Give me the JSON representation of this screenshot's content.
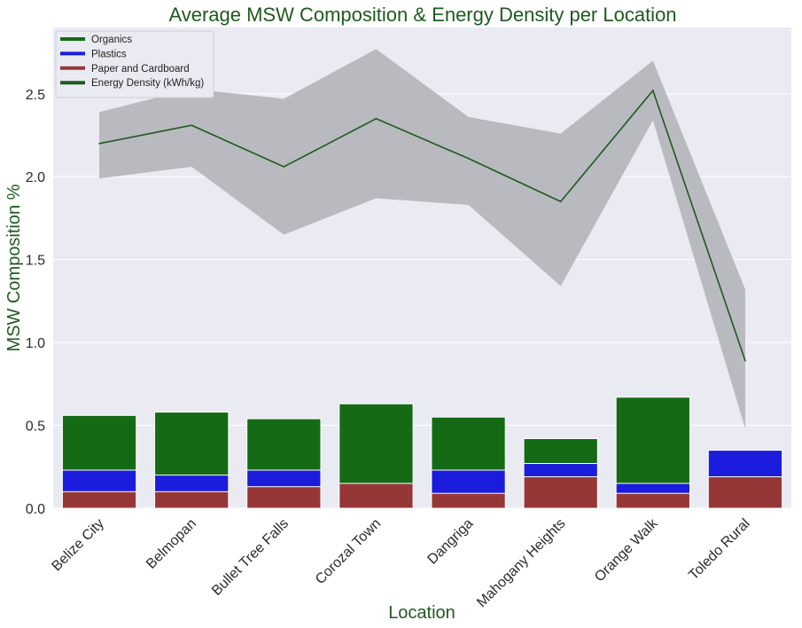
{
  "chart_data": {
    "type": "bar",
    "title": "Average MSW Composition & Energy Density per Location",
    "xlabel": "Location",
    "ylabel": "MSW Composition %",
    "ylim": [
      0,
      2.9
    ],
    "yticks": [
      "0.0",
      "0.5",
      "1.0",
      "1.5",
      "2.0",
      "2.5"
    ],
    "grid": true,
    "legend_position": "top-left",
    "categories": [
      "Belize City",
      "Belmopan",
      "Bullet Tree Falls",
      "Corozal Town",
      "Dangriga",
      "Mahogany Heights",
      "Orange Walk",
      "Toledo Rural"
    ],
    "series": [
      {
        "name": "Organics",
        "type": "bar",
        "color": "#156b15",
        "values": [
          0.56,
          0.58,
          0.54,
          0.63,
          0.55,
          0.42,
          0.67,
          0.0
        ]
      },
      {
        "name": "Plastics",
        "type": "bar",
        "color": "#1c1cdd",
        "values": [
          0.23,
          0.2,
          0.23,
          0.14,
          0.23,
          0.27,
          0.15,
          0.35
        ]
      },
      {
        "name": "Paper and Cardboard",
        "type": "bar",
        "color": "#963737",
        "values": [
          0.1,
          0.1,
          0.13,
          0.15,
          0.09,
          0.19,
          0.09,
          0.19
        ]
      },
      {
        "name": "Energy Density (kWh/kg)",
        "type": "line",
        "color": "#1e5a1e",
        "band_color": "#b9b9c0",
        "values": [
          2.2,
          2.31,
          2.06,
          2.35,
          2.11,
          1.85,
          2.52,
          0.89
        ],
        "lower": [
          1.99,
          2.06,
          1.65,
          1.87,
          1.83,
          1.34,
          2.34,
          0.48
        ],
        "upper": [
          2.39,
          2.53,
          2.47,
          2.77,
          2.36,
          2.26,
          2.7,
          1.32
        ]
      }
    ],
    "legend": [
      "Organics",
      "Plastics",
      "Paper and Cardboard",
      "Energy Density (kWh/kg)"
    ]
  }
}
